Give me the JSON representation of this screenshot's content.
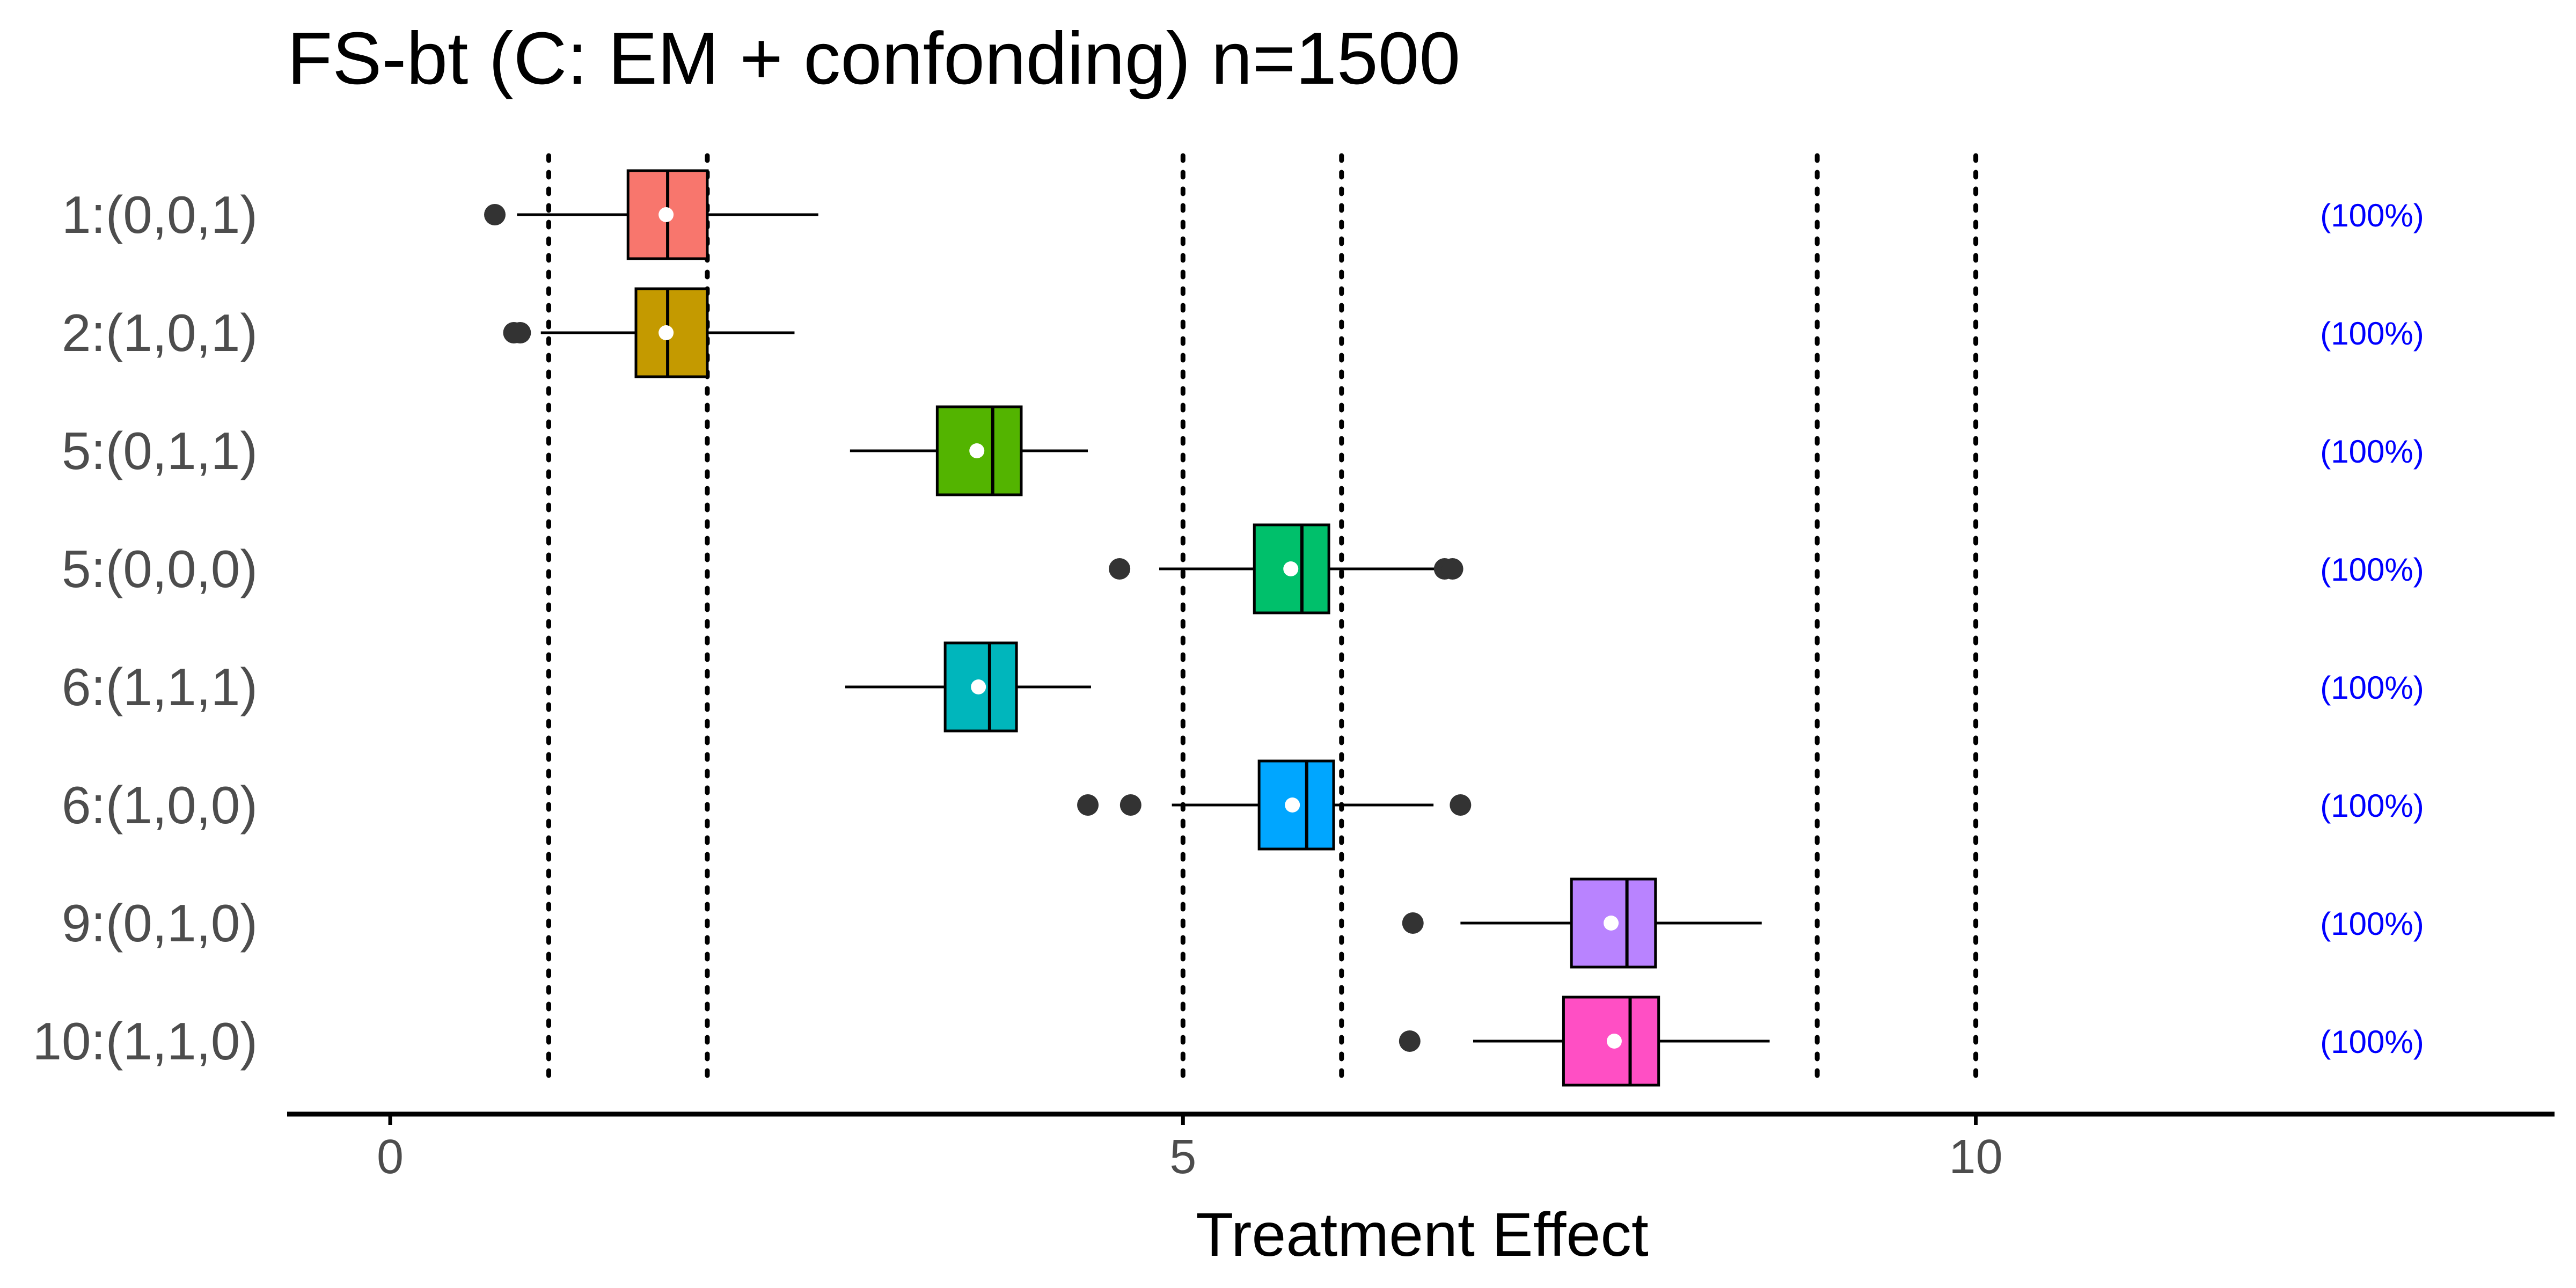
{
  "chart_data": {
    "type": "boxplot",
    "title": "FS-bt (C: EM + confonding) n=1500",
    "xlabel": "Treatment Effect",
    "ylabel": "",
    "xlim": [
      -0.65,
      13.65
    ],
    "x_ticks": [
      0,
      5,
      10
    ],
    "x_tick_labels": [
      "0",
      "5",
      "10"
    ],
    "reference_lines": [
      1,
      2,
      5,
      6,
      9,
      10
    ],
    "grid": false,
    "legend": "none",
    "categories": [
      "1:(0,0,1)",
      "2:(1,0,1)",
      "5:(0,1,1)",
      "5:(0,0,0)",
      "6:(1,1,1)",
      "6:(1,0,0)",
      "9:(0,1,0)",
      "10:(1,1,0)"
    ],
    "series": [
      {
        "label": "1:(0,0,1)",
        "color": "#F8766D",
        "whisker_low": 0.8,
        "q1": 1.5,
        "median": 1.75,
        "q3": 2.0,
        "whisker_high": 2.7,
        "mean": 1.74,
        "outliers": [
          0.66
        ],
        "annotation": "(100%)"
      },
      {
        "label": "2:(1,0,1)",
        "color": "#C49A00",
        "whisker_low": 0.95,
        "q1": 1.55,
        "median": 1.75,
        "q3": 2.0,
        "whisker_high": 2.55,
        "mean": 1.74,
        "outliers": [
          0.78,
          0.82
        ],
        "annotation": "(100%)"
      },
      {
        "label": "5:(0,1,1)",
        "color": "#53B400",
        "whisker_low": 2.9,
        "q1": 3.45,
        "median": 3.8,
        "q3": 3.98,
        "whisker_high": 4.4,
        "mean": 3.7,
        "outliers": [],
        "annotation": "(100%)"
      },
      {
        "label": "5:(0,0,0)",
        "color": "#00C06B",
        "whisker_low": 4.85,
        "q1": 5.45,
        "median": 5.75,
        "q3": 5.92,
        "whisker_high": 6.6,
        "mean": 5.68,
        "outliers": [
          4.6,
          6.65,
          6.7
        ],
        "annotation": "(100%)"
      },
      {
        "label": "6:(1,1,1)",
        "color": "#00B6BC",
        "whisker_low": 2.87,
        "q1": 3.5,
        "median": 3.78,
        "q3": 3.95,
        "whisker_high": 4.42,
        "mean": 3.71,
        "outliers": [],
        "annotation": "(100%)"
      },
      {
        "label": "6:(1,0,0)",
        "color": "#00A6FF",
        "whisker_low": 4.93,
        "q1": 5.48,
        "median": 5.78,
        "q3": 5.95,
        "whisker_high": 6.58,
        "mean": 5.69,
        "outliers": [
          4.4,
          4.67,
          6.75
        ],
        "annotation": "(100%)"
      },
      {
        "label": "9:(0,1,0)",
        "color": "#B983FF",
        "whisker_low": 6.75,
        "q1": 7.45,
        "median": 7.8,
        "q3": 7.98,
        "whisker_high": 8.65,
        "mean": 7.7,
        "outliers": [
          6.45
        ],
        "annotation": "(100%)"
      },
      {
        "label": "10:(1,1,0)",
        "color": "#FF4FC4",
        "whisker_low": 6.83,
        "q1": 7.4,
        "median": 7.82,
        "q3": 8.0,
        "whisker_high": 8.7,
        "mean": 7.72,
        "outliers": [
          6.43
        ],
        "annotation": "(100%)"
      }
    ],
    "colors": {
      "axis": "#000000",
      "text": "#4D4D4D",
      "annotation": "#0000FF",
      "median": "#000000",
      "mean_marker": "#FFFFFF",
      "outlier": "#333333"
    }
  }
}
